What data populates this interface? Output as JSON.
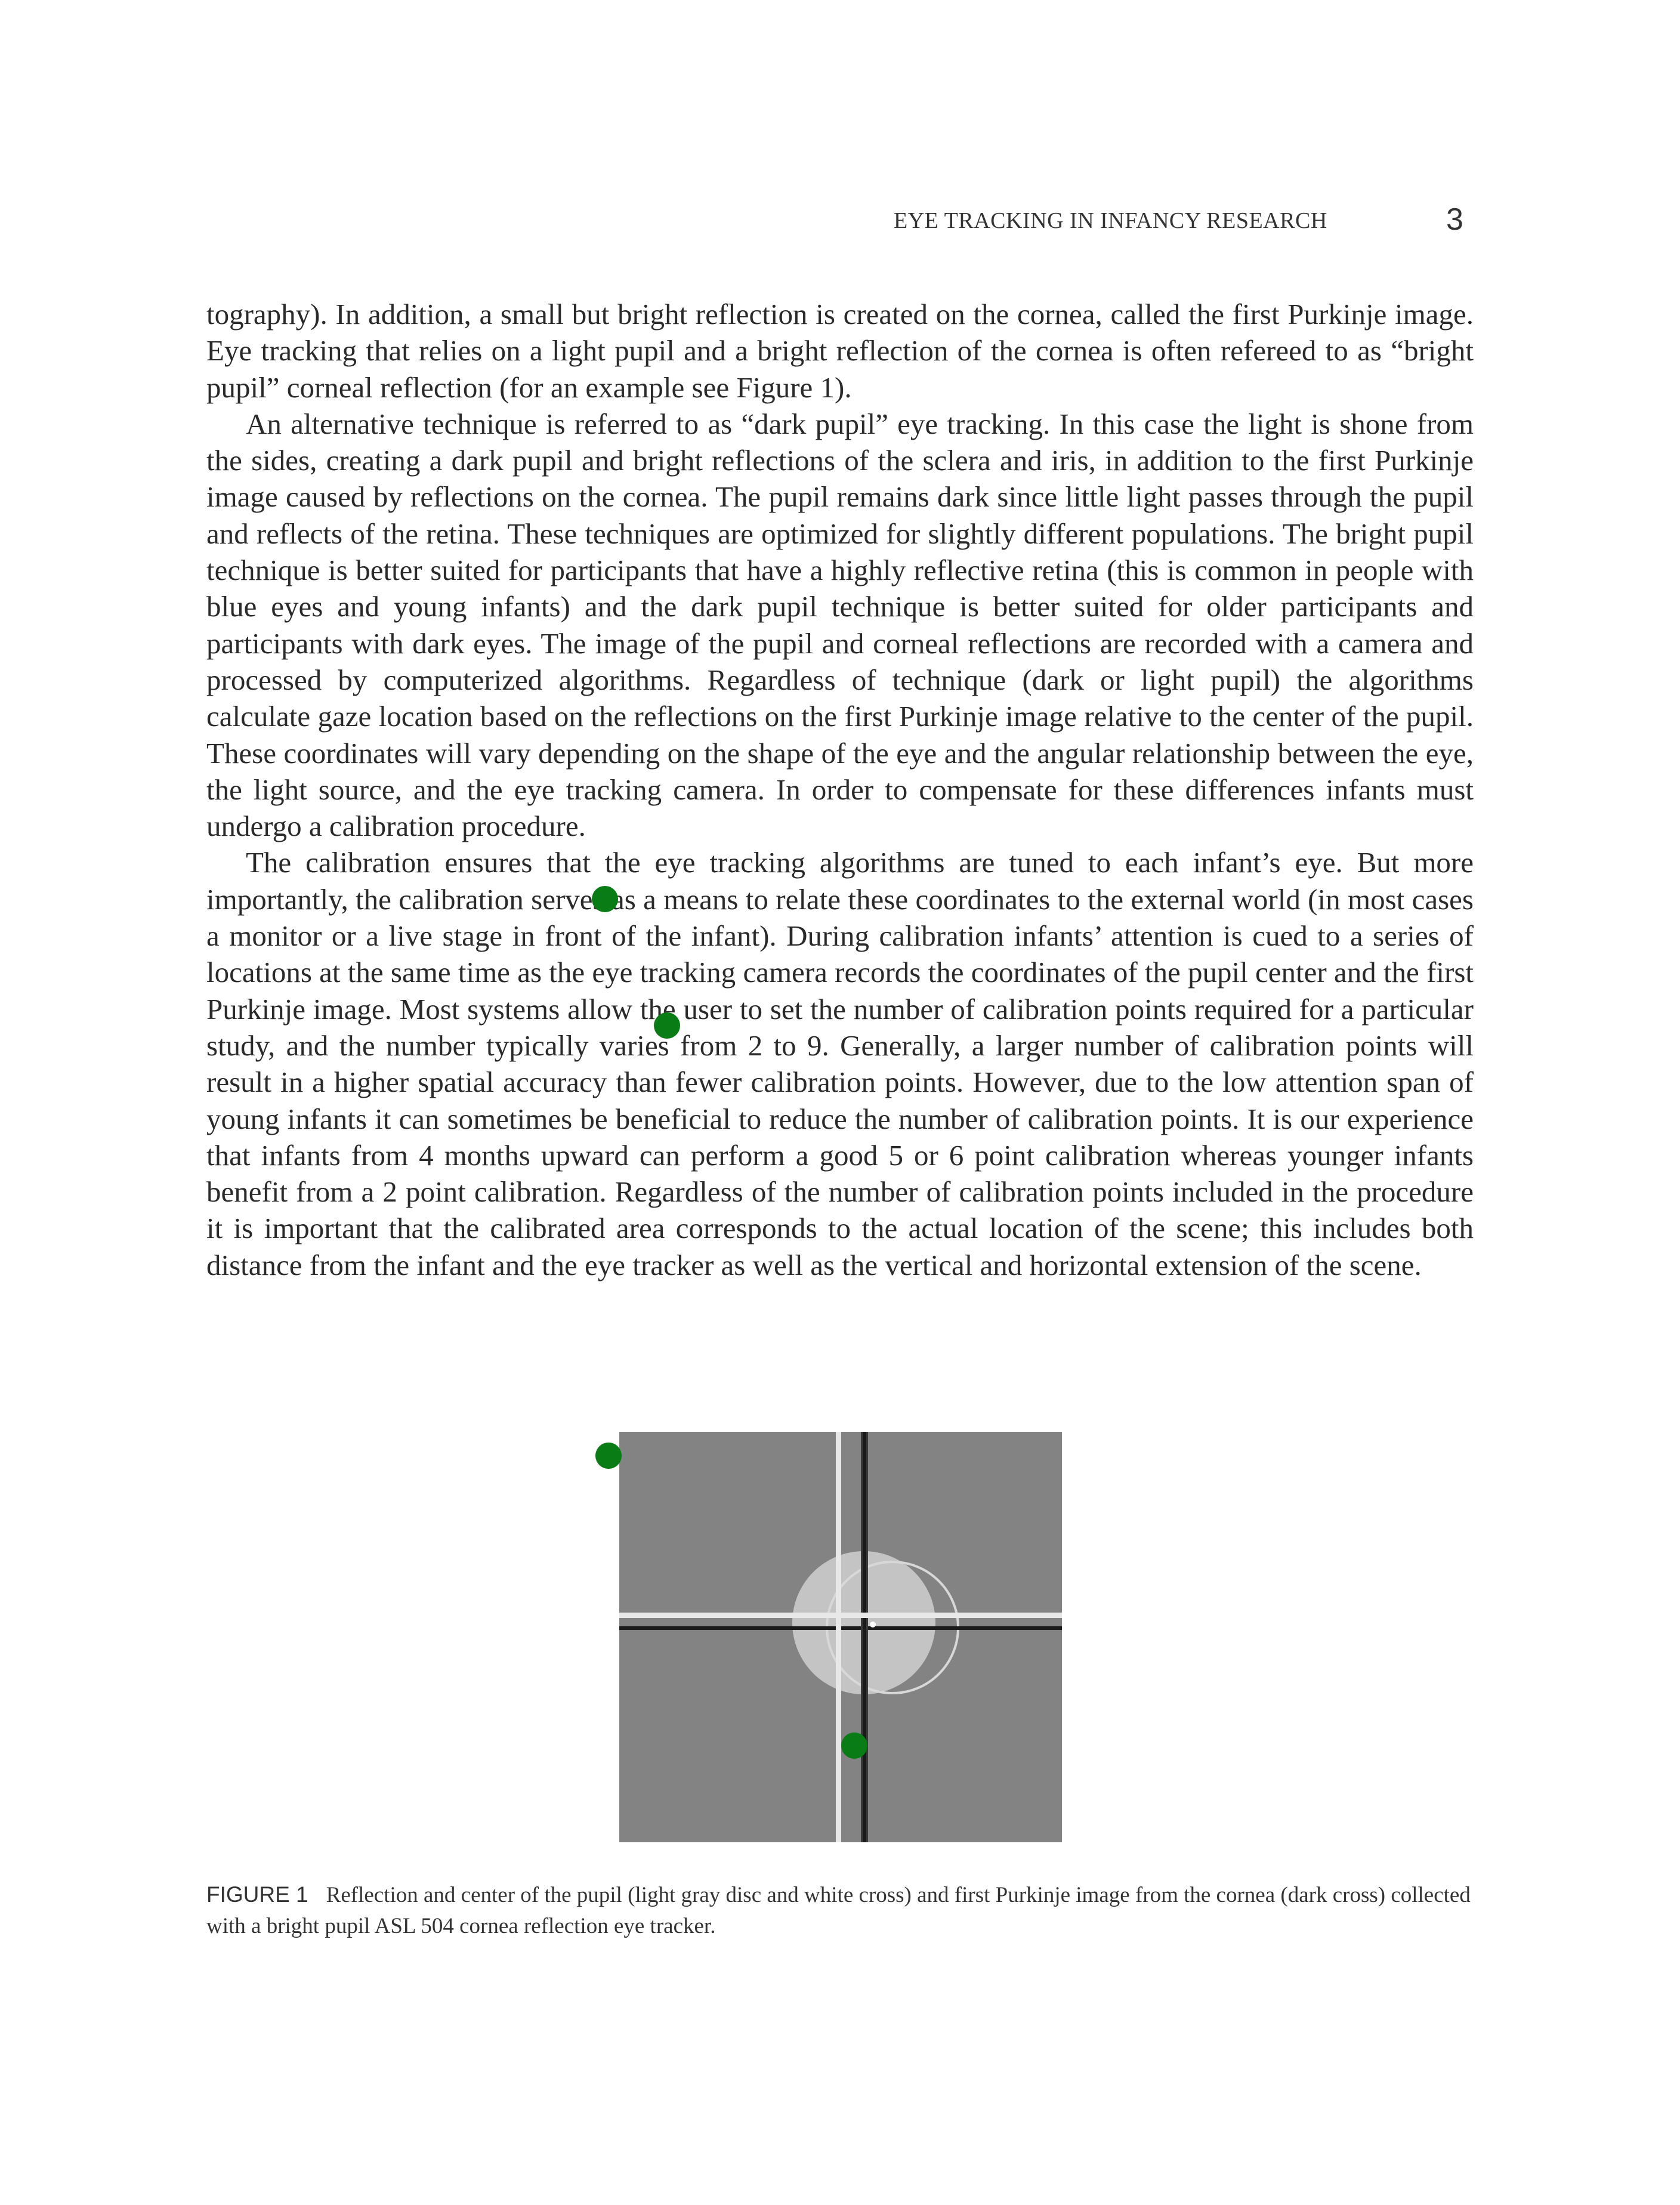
{
  "header": {
    "running_title": "EYE TRACKING IN INFANCY RESEARCH",
    "page_number": "3"
  },
  "body": {
    "paragraph_1": "tography). In addition, a small but bright reflection is created on the cornea, called the first Purkinje image. Eye tracking that relies on a light pupil and a bright reflection of the cornea is often refereed to as “bright pupil” corneal reflection (for an example see Figure 1).",
    "paragraph_2": "An alternative technique is referred to as “dark pupil” eye tracking. In this case the light is shone from the sides, creating a dark pupil and bright reflections of the sclera and iris, in addition to the first Purkinje image caused by reflections on the cornea. The pupil remains dark since little light passes through the pupil and reflects of the retina. These techniques are optimized for slightly different populations. The bright pupil technique is better suited for participants that have a highly reflective retina (this is common in people with blue eyes and young infants) and the dark pupil technique is better suited for older participants and participants with dark eyes. The image of the pupil and corneal reflections are recorded with a camera and processed by computerized algorithms. Regardless of technique (dark or light pupil) the algorithms calculate gaze location based on the reflections on the first Purkinje image relative to the center of the pupil. These coordinates will vary depending on the shape of the eye and the angular relationship between the eye, the light source, and the eye tracking camera. In order to compensate for these differences infants must undergo a calibration procedure.",
    "paragraph_3": "The calibration ensures that the eye tracking algorithms are tuned to each infant’s eye. But more importantly, the calibration serves as a means to relate these coordinates to the external world (in most cases a monitor or a live stage in front of the infant). During calibration infants’ attention is cued to a series of locations at the same time as the eye tracking camera records the coordinates of the pupil center and the first Purkinje image. Most systems allow the user to set the number of calibration points required for a particular study, and the number typically varies from 2 to 9. Generally, a larger number of calibration points will result in a higher spatial accuracy than fewer calibration points. However, due to the low attention span of young infants it can sometimes be beneficial to reduce the number of calibration points. It is our experience that infants from 4 months upward can perform a good 5 or 6 point calibration whereas younger infants benefit from a 2 point calibration. Regardless of the number of calibration points included in the procedure it is important that the calibrated area corresponds to the actual location of the scene; this includes both distance from the infant and the eye tracker as well as the vertical and horizontal extension of the scene."
  },
  "figure": {
    "label": "FIGURE 1",
    "caption": "Reflection and center of the pupil (light gray disc and white cross) and first Purkinje image from the cornea (dark cross) collected with a bright pupil ASL 504 cornea reflection eye tracker.",
    "colors": {
      "background": "#838383",
      "pupil_disc": "#c4c4c4",
      "white_cross": "#e8e8e8",
      "dark_cross": "#1a1a1a"
    }
  },
  "overlay": {
    "marker_color": "#0a7c16",
    "marker_count": 4
  }
}
